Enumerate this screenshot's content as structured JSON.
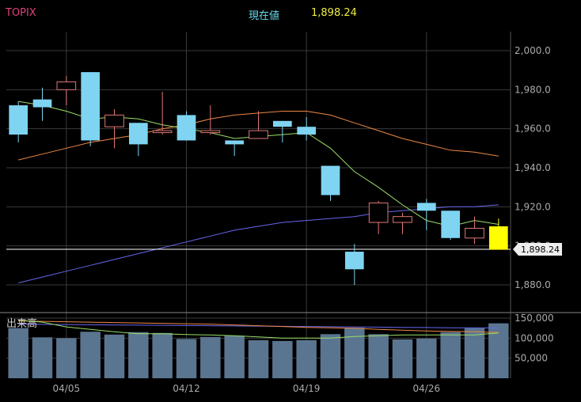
{
  "header": {
    "symbol": "TOPIX",
    "current_label": "現在値",
    "current_value": "1,898.24"
  },
  "colors": {
    "background": "#000000",
    "symbol": "#e0407a",
    "current_label": "#66ddee",
    "current_value": "#eeee44",
    "grid": "#3a3a3a",
    "up_candle": "#e07777",
    "down_candle": "#7fd4f2",
    "latest_candle": "#ffff00",
    "ma_short": "#99dd66",
    "ma_mid": "#ee8844",
    "ma_long": "#6666ee",
    "volume_bar": "#5a7590",
    "axis_text": "#aaaaaa"
  },
  "chart_data": [
    {
      "type": "candlestick",
      "y_ticks": [
        "2,000.0",
        "1,980.0",
        "1,960.0",
        "1,940.0",
        "1,920.0",
        "1,900.0",
        "1,880.0"
      ],
      "y_tick_values": [
        2000,
        1980,
        1960,
        1940,
        1920,
        1900,
        1880
      ],
      "ylim": [
        1874,
        2004
      ],
      "x_tick_labels": [
        "04/05",
        "04/12",
        "04/19",
        "04/26"
      ],
      "x_tick_index": [
        2,
        7,
        12,
        17
      ],
      "price_line": 1898.24,
      "price_line_label": "1,898.24",
      "candles": [
        {
          "open": 1972,
          "high": 1974,
          "low": 1953,
          "close": 1957
        },
        {
          "open": 1975,
          "high": 1981,
          "low": 1964,
          "close": 1971
        },
        {
          "open": 1980,
          "high": 1987,
          "low": 1972,
          "close": 1984
        },
        {
          "open": 1989,
          "high": 1989,
          "low": 1951,
          "close": 1954
        },
        {
          "open": 1961,
          "high": 1970,
          "low": 1950,
          "close": 1967
        },
        {
          "open": 1963,
          "high": 1963,
          "low": 1946,
          "close": 1952
        },
        {
          "open": 1958,
          "high": 1979,
          "low": 1957,
          "close": 1959
        },
        {
          "open": 1967,
          "high": 1969,
          "low": 1954,
          "close": 1954
        },
        {
          "open": 1958,
          "high": 1972,
          "low": 1957,
          "close": 1959
        },
        {
          "open": 1954,
          "high": 1954,
          "low": 1946,
          "close": 1952
        },
        {
          "open": 1955,
          "high": 1969,
          "low": 1955,
          "close": 1959
        },
        {
          "open": 1964,
          "high": 1964,
          "low": 1953,
          "close": 1961
        },
        {
          "open": 1961,
          "high": 1966,
          "low": 1954,
          "close": 1957
        },
        {
          "open": 1941,
          "high": 1941,
          "low": 1923,
          "close": 1926
        },
        {
          "open": 1897,
          "high": 1901,
          "low": 1880,
          "close": 1888
        },
        {
          "open": 1912,
          "high": 1923,
          "low": 1906,
          "close": 1922
        },
        {
          "open": 1912,
          "high": 1917,
          "low": 1906,
          "close": 1915
        },
        {
          "open": 1922,
          "high": 1924,
          "low": 1908,
          "close": 1918
        },
        {
          "open": 1918,
          "high": 1918,
          "low": 1903,
          "close": 1904
        },
        {
          "open": 1904,
          "high": 1915,
          "low": 1901,
          "close": 1909
        },
        {
          "open": 1910,
          "high": 1914,
          "low": 1898,
          "close": 1898
        }
      ],
      "ma_short": [
        1974,
        1972,
        1969,
        1965,
        1966,
        1965,
        1962,
        1960,
        1958,
        1955,
        1956,
        1957,
        1958,
        1950,
        1938,
        1930,
        1921,
        1913,
        1910,
        1913,
        1911
      ],
      "ma_mid": [
        1944,
        1947,
        1950,
        1953,
        1955,
        1957,
        1960,
        1962,
        1965,
        1967,
        1968,
        1969,
        1969,
        1967,
        1963,
        1959,
        1955,
        1952,
        1949,
        1948,
        1946
      ],
      "ma_long": [
        1881,
        1884,
        1887,
        1890,
        1893,
        1896,
        1899,
        1902,
        1905,
        1908,
        1910,
        1912,
        1913,
        1914,
        1915,
        1917,
        1918,
        1919,
        1920,
        1920,
        1921
      ]
    },
    {
      "type": "bar",
      "label": "出来高",
      "y_ticks": [
        "150,000",
        "100,000",
        "50,000"
      ],
      "y_tick_values": [
        150000,
        100000,
        50000
      ],
      "ylim": [
        0,
        155000
      ],
      "values": [
        125000,
        102000,
        100000,
        116000,
        109000,
        115000,
        113000,
        98000,
        103000,
        106000,
        95000,
        93000,
        95000,
        110000,
        126000,
        110000,
        97000,
        99000,
        115000,
        125000,
        137000
      ],
      "ma_short": [
        145000,
        140000,
        128000,
        122000,
        116000,
        111000,
        111000,
        109000,
        108000,
        106000,
        103000,
        100000,
        100000,
        100000,
        104000,
        106000,
        108000,
        108000,
        108000,
        108000,
        113000
      ],
      "ma_mid": [
        143000,
        142000,
        141000,
        140000,
        139000,
        138000,
        137000,
        136000,
        135000,
        133000,
        131000,
        129000,
        127000,
        126000,
        125000,
        122000,
        120000,
        118000,
        117000,
        116000,
        114000
      ],
      "ma_long": [
        135000,
        134500,
        134000,
        133500,
        133000,
        132500,
        132000,
        131500,
        131000,
        130500,
        130000,
        129500,
        129000,
        128500,
        128000,
        127500,
        127000,
        126500,
        126000,
        125800,
        125500
      ]
    }
  ]
}
